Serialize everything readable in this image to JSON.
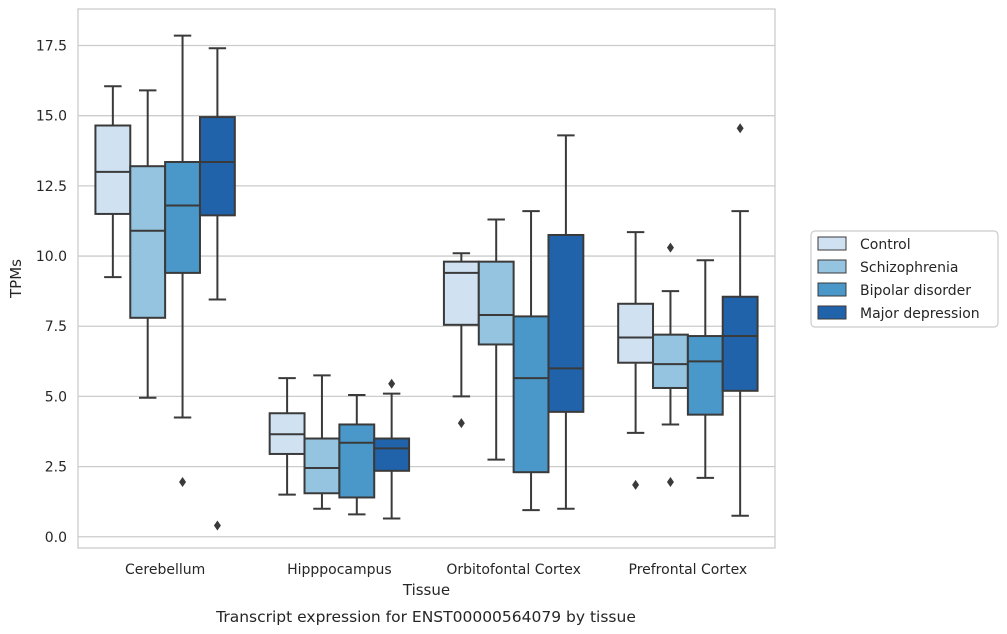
{
  "chart_data": {
    "type": "boxplot",
    "caption": "Transcript expression for ENST00000564079 by tissue",
    "xlabel": "Tissue",
    "ylabel": "TPMs",
    "ylim": [
      -0.4,
      18.8
    ],
    "yticks": [
      0.0,
      2.5,
      5.0,
      7.5,
      10.0,
      12.5,
      15.0,
      17.5
    ],
    "ytick_labels": [
      "0.0",
      "2.5",
      "5.0",
      "7.5",
      "10.0",
      "12.5",
      "15.0",
      "17.5"
    ],
    "grid": "horizontal",
    "legend_position": "right",
    "categories": [
      "Cerebellum",
      "Hipppocampus",
      "Orbitofontal Cortex",
      "Prefrontal Cortex"
    ],
    "series": [
      {
        "name": "Control",
        "color": "#d0e1f2",
        "boxes": [
          {
            "whislo": 9.25,
            "q1": 11.5,
            "med": 13.0,
            "q3": 14.65,
            "whishi": 16.05,
            "fliers": []
          },
          {
            "whislo": 1.5,
            "q1": 2.95,
            "med": 3.65,
            "q3": 4.4,
            "whishi": 5.65,
            "fliers": []
          },
          {
            "whislo": 5.0,
            "q1": 7.55,
            "med": 9.4,
            "q3": 9.8,
            "whishi": 10.1,
            "fliers": [
              4.05
            ]
          },
          {
            "whislo": 3.7,
            "q1": 6.2,
            "med": 7.1,
            "q3": 8.3,
            "whishi": 10.85,
            "fliers": [
              1.85
            ]
          }
        ]
      },
      {
        "name": "Schizophrenia",
        "color": "#94c4df",
        "boxes": [
          {
            "whislo": 4.95,
            "q1": 7.8,
            "med": 10.9,
            "q3": 13.2,
            "whishi": 15.9,
            "fliers": []
          },
          {
            "whislo": 1.0,
            "q1": 1.55,
            "med": 2.45,
            "q3": 3.5,
            "whishi": 5.75,
            "fliers": []
          },
          {
            "whislo": 2.75,
            "q1": 6.85,
            "med": 7.9,
            "q3": 9.8,
            "whishi": 11.3,
            "fliers": []
          },
          {
            "whislo": 4.0,
            "q1": 5.3,
            "med": 6.15,
            "q3": 7.2,
            "whishi": 8.75,
            "fliers": [
              1.95,
              10.3
            ]
          }
        ]
      },
      {
        "name": "Bipolar disorder",
        "color": "#4a98c9",
        "boxes": [
          {
            "whislo": 4.25,
            "q1": 9.4,
            "med": 11.8,
            "q3": 13.35,
            "whishi": 17.85,
            "fliers": [
              1.95
            ]
          },
          {
            "whislo": 0.8,
            "q1": 1.4,
            "med": 3.35,
            "q3": 4.0,
            "whishi": 5.05,
            "fliers": []
          },
          {
            "whislo": 0.95,
            "q1": 2.3,
            "med": 5.65,
            "q3": 7.85,
            "whishi": 11.6,
            "fliers": []
          },
          {
            "whislo": 2.1,
            "q1": 4.35,
            "med": 6.25,
            "q3": 7.15,
            "whishi": 9.85,
            "fliers": []
          }
        ]
      },
      {
        "name": "Major depression",
        "color": "#2163aa",
        "boxes": [
          {
            "whislo": 8.45,
            "q1": 11.45,
            "med": 13.35,
            "q3": 14.95,
            "whishi": 17.4,
            "fliers": [
              0.4
            ]
          },
          {
            "whislo": 0.65,
            "q1": 2.35,
            "med": 3.15,
            "q3": 3.5,
            "whishi": 5.1,
            "fliers": [
              5.45
            ]
          },
          {
            "whislo": 1.0,
            "q1": 4.45,
            "med": 6.0,
            "q3": 10.75,
            "whishi": 14.3,
            "fliers": []
          },
          {
            "whislo": 0.75,
            "q1": 5.2,
            "med": 7.15,
            "q3": 8.55,
            "whishi": 11.6,
            "fliers": [
              14.55
            ]
          }
        ]
      }
    ]
  }
}
